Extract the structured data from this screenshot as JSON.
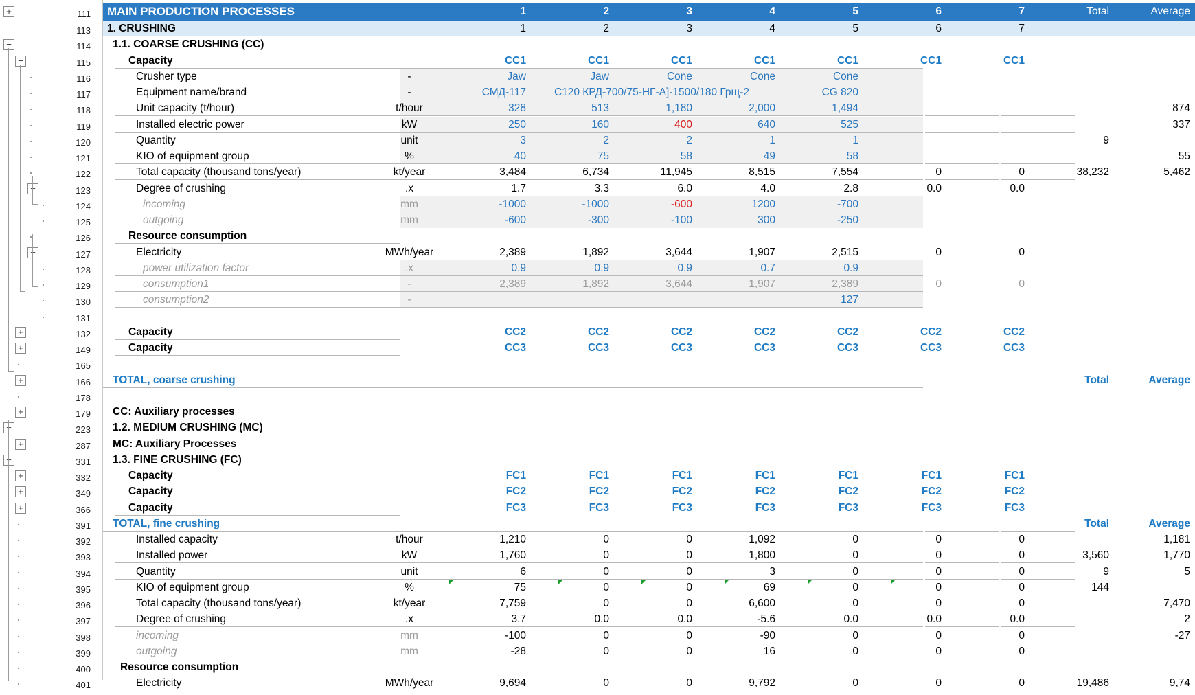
{
  "header": {
    "title": "MAIN PRODUCTION PROCESSES",
    "cols": [
      "1",
      "2",
      "3",
      "4",
      "5",
      "6",
      "7"
    ],
    "total": "Total",
    "average": "Average"
  },
  "colors": {
    "header_bg": "#2a7ac4",
    "subheader_bg": "#daeaf7",
    "accent_blue": "#1f7bc4",
    "alert_red": "#d62020",
    "input_shade": "#f0f0f0"
  },
  "rows": [
    {
      "rn": "113",
      "label": "1. CRUSHING",
      "cols": [
        "1",
        "2",
        "3",
        "4",
        "5",
        "6",
        "7"
      ]
    },
    {
      "rn": "114",
      "label": "1.1. COARSE CRUSHING (CC)"
    },
    {
      "rn": "115",
      "label": "Capacity",
      "cols": [
        "CC1",
        "CC1",
        "CC1",
        "CC1",
        "CC1",
        "CC1",
        "CC1"
      ]
    },
    {
      "rn": "116",
      "label": "Crusher type",
      "unit": "-",
      "cols": [
        "Jaw",
        "Jaw",
        "Cone",
        "Cone",
        "Cone",
        "",
        ""
      ]
    },
    {
      "rn": "117",
      "label": "Equipment name/brand",
      "unit": "-",
      "cols": [
        "СМД-117",
        "",
        "C120 КРД-700/75-НГ-А]-1500/180 Грщ-2",
        "",
        "CG 820",
        "",
        ""
      ]
    },
    {
      "rn": "118",
      "label": "Unit capacity (t/hour)",
      "unit": "t/hour",
      "cols": [
        "328",
        "513",
        "1,180",
        "2,000",
        "1,494",
        "",
        ""
      ],
      "avg": "874"
    },
    {
      "rn": "119",
      "label": "Installed electric power",
      "unit": "kW",
      "cols": [
        "250",
        "160",
        "400",
        "640",
        "525",
        "",
        ""
      ],
      "avg": "337"
    },
    {
      "rn": "120",
      "label": "Quantity",
      "unit": "unit",
      "cols": [
        "3",
        "2",
        "2",
        "1",
        "1",
        "",
        ""
      ],
      "total": "9"
    },
    {
      "rn": "121",
      "label": "KIO of equipment group",
      "unit": "%",
      "cols": [
        "40",
        "75",
        "58",
        "49",
        "58",
        "",
        ""
      ],
      "avg": "55"
    },
    {
      "rn": "122",
      "label": "Total capacity (thousand tons/year)",
      "unit": "kt/year",
      "cols": [
        "3,484",
        "6,734",
        "11,945",
        "8,515",
        "7,554",
        "0",
        "0"
      ],
      "total": "38,232",
      "avg": "5,462"
    },
    {
      "rn": "123",
      "label": "Degree of crushing",
      "unit": ".x",
      "cols": [
        "1.7",
        "3.3",
        "6.0",
        "4.0",
        "2.8",
        "0.0",
        "0.0"
      ]
    },
    {
      "rn": "124",
      "label": "incoming",
      "unit": "mm",
      "cols": [
        "-1000",
        "-1000",
        "-600",
        "1200",
        "-700",
        "",
        ""
      ]
    },
    {
      "rn": "125",
      "label": "outgoing",
      "unit": "mm",
      "cols": [
        "-600",
        "-300",
        "-100",
        "300",
        "-250",
        "",
        ""
      ]
    },
    {
      "rn": "126",
      "label": "Resource consumption"
    },
    {
      "rn": "127",
      "label": "Electricity",
      "unit": "MWh/year",
      "cols": [
        "2,389",
        "1,892",
        "3,644",
        "1,907",
        "2,515",
        "0",
        "0"
      ]
    },
    {
      "rn": "128",
      "label": "power utilization factor",
      "unit": ".x",
      "cols": [
        "0.9",
        "0.9",
        "0.9",
        "0.7",
        "0.9",
        "",
        ""
      ]
    },
    {
      "rn": "129",
      "label": "consumption1",
      "unit": "-",
      "cols": [
        "2,389",
        "1,892",
        "3,644",
        "1,907",
        "2,389",
        "0",
        "0"
      ]
    },
    {
      "rn": "130",
      "label": "consumption2",
      "unit": "-",
      "cols": [
        "",
        "",
        "",
        "",
        "127",
        "",
        ""
      ]
    },
    {
      "rn": "131",
      "label": ""
    },
    {
      "rn": "132",
      "label": "Capacity",
      "cols": [
        "CC2",
        "CC2",
        "CC2",
        "CC2",
        "CC2",
        "CC2",
        "CC2"
      ]
    },
    {
      "rn": "149",
      "label": "Capacity",
      "cols": [
        "CC3",
        "CC3",
        "CC3",
        "CC3",
        "CC3",
        "CC3",
        "CC3"
      ]
    },
    {
      "rn": "165",
      "label": ""
    },
    {
      "rn": "166",
      "label": "TOTAL, coarse crushing",
      "total": "Total",
      "avg": "Average"
    },
    {
      "rn": "178",
      "label": ""
    },
    {
      "rn": "179",
      "label": "CC: Auxiliary processes"
    },
    {
      "rn": "223",
      "label": "1.2. MEDIUM CRUSHING (MC)"
    },
    {
      "rn": "287",
      "label": "MC: Auxiliary Processes"
    },
    {
      "rn": "331",
      "label": "1.3. FINE CRUSHING (FC)"
    },
    {
      "rn": "332",
      "label": "Capacity",
      "cols": [
        "FC1",
        "FC1",
        "FC1",
        "FC1",
        "FC1",
        "FC1",
        "FC1"
      ]
    },
    {
      "rn": "349",
      "label": "Capacity",
      "cols": [
        "FC2",
        "FC2",
        "FC2",
        "FC2",
        "FC2",
        "FC2",
        "FC2"
      ]
    },
    {
      "rn": "366",
      "label": "Capacity",
      "cols": [
        "FC3",
        "FC3",
        "FC3",
        "FC3",
        "FC3",
        "FC3",
        "FC3"
      ]
    },
    {
      "rn": "391",
      "label": "TOTAL, fine crushing",
      "total": "Total",
      "avg": "Average"
    },
    {
      "rn": "392",
      "label": "Installed capacity",
      "unit": "t/hour",
      "cols": [
        "1,210",
        "0",
        "0",
        "1,092",
        "0",
        "0",
        "0"
      ],
      "avg": "1,181"
    },
    {
      "rn": "393",
      "label": "Installed power",
      "unit": "kW",
      "cols": [
        "1,760",
        "0",
        "0",
        "1,800",
        "0",
        "0",
        "0"
      ],
      "total": "3,560",
      "avg": "1,770"
    },
    {
      "rn": "394",
      "label": "Quantity",
      "unit": "unit",
      "cols": [
        "6",
        "0",
        "0",
        "3",
        "0",
        "0",
        "0"
      ],
      "total": "9",
      "avg": "5"
    },
    {
      "rn": "395",
      "label": "KIO of equipment group",
      "unit": "%",
      "cols": [
        "75",
        "0",
        "0",
        "69",
        "0",
        "0",
        "0"
      ],
      "total": "144"
    },
    {
      "rn": "396",
      "label": "Total capacity (thousand tons/year)",
      "unit": "kt/year",
      "cols": [
        "7,759",
        "0",
        "0",
        "6,600",
        "0",
        "0",
        "0"
      ],
      "avg": "7,470"
    },
    {
      "rn": "397",
      "label": "Degree of crushing",
      "unit": ".x",
      "cols": [
        "3.7",
        "0.0",
        "0.0",
        "-5.6",
        "0.0",
        "0.0",
        "0.0"
      ],
      "avg": "2"
    },
    {
      "rn": "398",
      "label": "incoming",
      "unit": "mm",
      "cols": [
        "-100",
        "0",
        "0",
        "-90",
        "0",
        "0",
        "0"
      ],
      "avg": "-27"
    },
    {
      "rn": "399",
      "label": "outgoing",
      "unit": "mm",
      "cols": [
        "-28",
        "0",
        "0",
        "16",
        "0",
        "0",
        "0"
      ]
    },
    {
      "rn": "400",
      "label": "Resource consumption"
    },
    {
      "rn": "401",
      "label": "Electricity",
      "unit": "MWh/year",
      "cols": [
        "9,694",
        "0",
        "0",
        "9,792",
        "0",
        "0",
        "0"
      ],
      "total": "19,486",
      "avg": "9,74"
    }
  ],
  "header_rownum": "111"
}
